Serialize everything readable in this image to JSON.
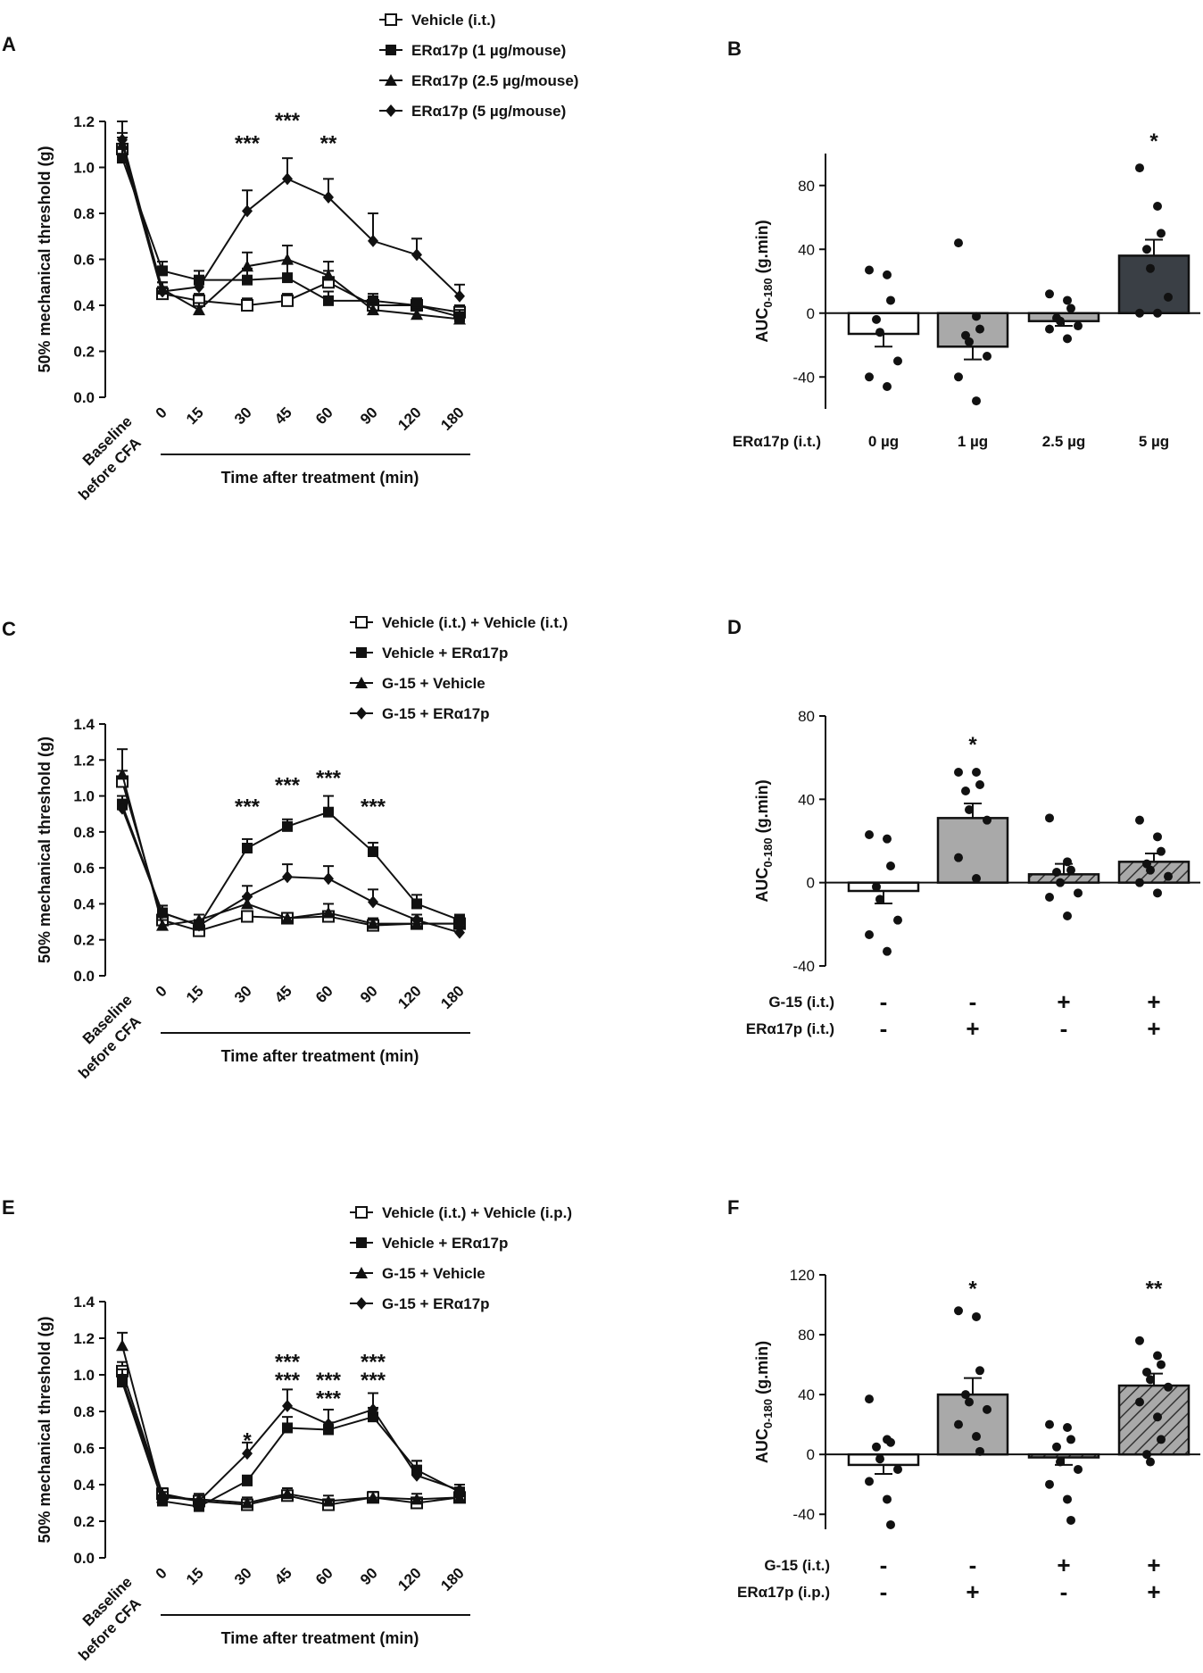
{
  "panels": [
    {
      "letter": "A",
      "chart_data": {
        "type": "line",
        "ylabel": "50% mechanical threshold (g)",
        "xlabel": "Time after treatment (min)",
        "ylim": [
          0,
          1.2
        ],
        "yticks": [
          "0.0",
          "0.2",
          "0.4",
          "0.6",
          "0.8",
          "1.0",
          "1.2"
        ],
        "categories": [
          "Baseline before CFA",
          "0",
          "15",
          "30",
          "45",
          "60",
          "90",
          "120",
          "180"
        ],
        "series": [
          {
            "name": "Vehicle (i.t.)",
            "marker": "open-square",
            "values": [
              1.08,
              0.45,
              0.42,
              0.4,
              0.42,
              0.5,
              0.4,
              0.4,
              0.37
            ],
            "err": [
              0.05,
              0.03,
              0.03,
              0.03,
              0.03,
              0.05,
              0.03,
              0.03,
              0.03
            ]
          },
          {
            "name": "ERα17p (1 µg/mouse)",
            "marker": "square",
            "values": [
              1.04,
              0.55,
              0.51,
              0.51,
              0.52,
              0.42,
              0.42,
              0.4,
              0.35
            ],
            "err": [
              0.04,
              0.04,
              0.04,
              0.05,
              0.06,
              0.04,
              0.03,
              0.03,
              0.03
            ]
          },
          {
            "name": "ERα17p (2.5 µg/mouse)",
            "marker": "triangle",
            "values": [
              1.1,
              0.47,
              0.38,
              0.57,
              0.6,
              0.53,
              0.38,
              0.36,
              0.34
            ],
            "err": [
              0.05,
              0.03,
              0.03,
              0.06,
              0.06,
              0.06,
              0.03,
              0.03,
              0.03
            ]
          },
          {
            "name": "ERα17p (5 µg/mouse)",
            "marker": "diamond",
            "values": [
              1.12,
              0.46,
              0.48,
              0.81,
              0.95,
              0.87,
              0.68,
              0.62,
              0.44
            ],
            "err": [
              0.08,
              0.04,
              0.04,
              0.09,
              0.09,
              0.08,
              0.12,
              0.07,
              0.05
            ]
          }
        ],
        "annotations": [
          {
            "cat": "30",
            "text": "***",
            "y": 1.12
          },
          {
            "cat": "45",
            "text": "***",
            "y": 1.22
          },
          {
            "cat": "60",
            "text": "**",
            "y": 1.12
          }
        ]
      }
    },
    {
      "letter": "B",
      "chart_data": {
        "type": "bar",
        "ylabel": "AUC",
        "ylabel_sub": "0-180",
        "ylabel_suffix": " (g.min)",
        "ylim": [
          -60,
          100
        ],
        "yticks": [
          "-40",
          "0",
          "40",
          "80"
        ],
        "row_labels": [
          "ERα17p (i.t.)"
        ],
        "categories": [
          "0 µg",
          "1 µg",
          "2.5 µg",
          "5 µg"
        ],
        "fills": [
          "#ffffff",
          "#a9a9a9",
          "#a9a9a9",
          "#3a3f45"
        ],
        "values": [
          -13,
          -21,
          -5,
          36
        ],
        "err": [
          8,
          8,
          3,
          10
        ],
        "points": [
          [
            27,
            24,
            8,
            -4,
            -12,
            -30,
            -40,
            -46
          ],
          [
            44,
            -2,
            -10,
            -14,
            -18,
            -27,
            -40,
            -55
          ],
          [
            12,
            8,
            3,
            -3,
            -5,
            -8,
            -10,
            -16
          ],
          [
            91,
            67,
            50,
            40,
            28,
            10,
            0,
            0
          ]
        ],
        "annotations": [
          {
            "index": 3,
            "text": "*",
            "y": 110
          }
        ]
      }
    },
    {
      "letter": "C",
      "chart_data": {
        "type": "line",
        "ylabel": "50% mechanical threshold (g)",
        "xlabel": "Time after treatment (min)",
        "ylim": [
          0,
          1.4
        ],
        "yticks": [
          "0.0",
          "0.2",
          "0.4",
          "0.6",
          "0.8",
          "1.0",
          "1.2",
          "1.4"
        ],
        "categories": [
          "Baseline before CFA",
          "0",
          "15",
          "30",
          "45",
          "60",
          "90",
          "120",
          "180"
        ],
        "series": [
          {
            "name": "Vehicle (i.t.) + Vehicle (i.t.)",
            "marker": "open-square",
            "values": [
              1.08,
              0.31,
              0.25,
              0.33,
              0.32,
              0.33,
              0.28,
              0.29,
              0.29
            ],
            "err": [
              0.06,
              0.03,
              0.03,
              0.03,
              0.03,
              0.03,
              0.03,
              0.03,
              0.03
            ]
          },
          {
            "name": "Vehicle + ERα17p",
            "marker": "square",
            "values": [
              0.95,
              0.35,
              0.28,
              0.71,
              0.83,
              0.91,
              0.69,
              0.4,
              0.31
            ],
            "err": [
              0.05,
              0.04,
              0.03,
              0.05,
              0.04,
              0.09,
              0.05,
              0.05,
              0.03
            ]
          },
          {
            "name": "G-15 + Vehicle",
            "marker": "triangle",
            "values": [
              1.12,
              0.28,
              0.31,
              0.4,
              0.32,
              0.35,
              0.29,
              0.29,
              0.29
            ],
            "err": [
              0.14,
              0.03,
              0.03,
              0.04,
              0.03,
              0.05,
              0.03,
              0.03,
              0.03
            ]
          },
          {
            "name": "G-15 + ERα17p",
            "marker": "diamond",
            "values": [
              0.93,
              0.35,
              0.28,
              0.44,
              0.55,
              0.54,
              0.41,
              0.31,
              0.24
            ],
            "err": [
              0.05,
              0.04,
              0.03,
              0.06,
              0.07,
              0.07,
              0.07,
              0.03,
              0.03
            ]
          }
        ],
        "annotations": [
          {
            "cat": "30",
            "text": "***",
            "y": 0.96
          },
          {
            "cat": "45",
            "text": "***",
            "y": 1.08
          },
          {
            "cat": "60",
            "text": "***",
            "y": 1.12
          },
          {
            "cat": "90",
            "text": "***",
            "y": 0.96
          }
        ]
      }
    },
    {
      "letter": "D",
      "chart_data": {
        "type": "bar",
        "ylabel": "AUC",
        "ylabel_sub": "0-180",
        "ylabel_suffix": " (g.min)",
        "ylim": [
          -40,
          80
        ],
        "yticks": [
          "-40",
          "0",
          "40",
          "80"
        ],
        "row_labels": [
          "G-15 (i.t.)",
          "ERα17p (i.t.)"
        ],
        "rows": [
          [
            "-",
            "-",
            "+",
            "+"
          ],
          [
            "-",
            "+",
            "-",
            "+"
          ]
        ],
        "fills": [
          "#ffffff",
          "#a9a9a9",
          "#ffffff",
          "#a9a9a9"
        ],
        "hatch": [
          false,
          false,
          true,
          true
        ],
        "values": [
          -4,
          31,
          4,
          10
        ],
        "err": [
          6,
          7,
          5,
          4
        ],
        "points": [
          [
            23,
            21,
            8,
            -2,
            -8,
            -18,
            -25,
            -33
          ],
          [
            53,
            53,
            47,
            44,
            35,
            30,
            12,
            2
          ],
          [
            31,
            10,
            6,
            5,
            0,
            -5,
            -7,
            -16
          ],
          [
            30,
            22,
            15,
            9,
            6,
            3,
            0,
            -5
          ]
        ],
        "annotations": [
          {
            "index": 1,
            "text": "*",
            "y": 68
          }
        ]
      }
    },
    {
      "letter": "E",
      "chart_data": {
        "type": "line",
        "ylabel": "50% mechanical threshold (g)",
        "xlabel": "Time after treatment (min)",
        "ylim": [
          0,
          1.4
        ],
        "yticks": [
          "0.0",
          "0.2",
          "0.4",
          "0.6",
          "0.8",
          "1.0",
          "1.2",
          "1.4"
        ],
        "categories": [
          "Baseline before CFA",
          "0",
          "15",
          "30",
          "45",
          "60",
          "90",
          "120",
          "180"
        ],
        "series": [
          {
            "name": "Vehicle (i.t.) + Vehicle (i.p.)",
            "marker": "open-square",
            "values": [
              1.02,
              0.35,
              0.31,
              0.29,
              0.34,
              0.29,
              0.33,
              0.3,
              0.33
            ],
            "err": [
              0.05,
              0.03,
              0.03,
              0.03,
              0.04,
              0.03,
              0.03,
              0.03,
              0.03
            ]
          },
          {
            "name": "Vehicle + ERα17p",
            "marker": "square",
            "values": [
              0.96,
              0.31,
              0.28,
              0.42,
              0.71,
              0.7,
              0.77,
              0.48,
              0.36
            ],
            "err": [
              0.04,
              0.03,
              0.03,
              0.03,
              0.06,
              0.04,
              0.05,
              0.05,
              0.04
            ]
          },
          {
            "name": "G-15 + Vehicle",
            "marker": "triangle",
            "values": [
              1.16,
              0.33,
              0.32,
              0.3,
              0.35,
              0.31,
              0.33,
              0.32,
              0.33
            ],
            "err": [
              0.07,
              0.03,
              0.03,
              0.03,
              0.03,
              0.03,
              0.03,
              0.03,
              0.03
            ]
          },
          {
            "name": "G-15 + ERα17p",
            "marker": "diamond",
            "values": [
              0.98,
              0.34,
              0.31,
              0.57,
              0.83,
              0.73,
              0.81,
              0.45,
              0.37
            ],
            "err": [
              0.05,
              0.04,
              0.03,
              0.06,
              0.09,
              0.08,
              0.09,
              0.08,
              0.03
            ]
          }
        ],
        "annotations": [
          {
            "cat": "30",
            "text": "*",
            "y": 0.66
          },
          {
            "cat": "45",
            "text": "***",
            "y": 1.09
          },
          {
            "cat": "45",
            "text": "***",
            "y": 0.99
          },
          {
            "cat": "60",
            "text": "***",
            "y": 0.99
          },
          {
            "cat": "60",
            "text": "***",
            "y": 0.89
          },
          {
            "cat": "90",
            "text": "***",
            "y": 1.09
          },
          {
            "cat": "90",
            "text": "***",
            "y": 0.99
          }
        ]
      }
    },
    {
      "letter": "F",
      "chart_data": {
        "type": "bar",
        "ylabel": "AUC",
        "ylabel_sub": "0-180",
        "ylabel_suffix": " (g.min)",
        "ylim": [
          -50,
          120
        ],
        "yticks": [
          "-40",
          "0",
          "40",
          "80",
          "120"
        ],
        "row_labels": [
          "G-15 (i.t.)",
          "ERα17p (i.p.)"
        ],
        "rows": [
          [
            "-",
            "-",
            "+",
            "+"
          ],
          [
            "-",
            "+",
            "-",
            "+"
          ]
        ],
        "fills": [
          "#ffffff",
          "#a9a9a9",
          "#ffffff",
          "#a9a9a9"
        ],
        "hatch": [
          false,
          false,
          true,
          true
        ],
        "values": [
          -7,
          40,
          -2,
          46
        ],
        "err": [
          6,
          11,
          5,
          8
        ],
        "points": [
          [
            37,
            10,
            8,
            5,
            -3,
            -10,
            -18,
            -30,
            -47
          ],
          [
            96,
            92,
            56,
            40,
            35,
            30,
            20,
            12,
            2
          ],
          [
            20,
            18,
            10,
            5,
            -5,
            -10,
            -20,
            -30,
            -44
          ],
          [
            76,
            66,
            60,
            55,
            50,
            45,
            35,
            25,
            10,
            0,
            -5
          ]
        ],
        "annotations": [
          {
            "index": 1,
            "text": "*",
            "y": 113
          },
          {
            "index": 3,
            "text": "**",
            "y": 113
          }
        ]
      }
    }
  ]
}
